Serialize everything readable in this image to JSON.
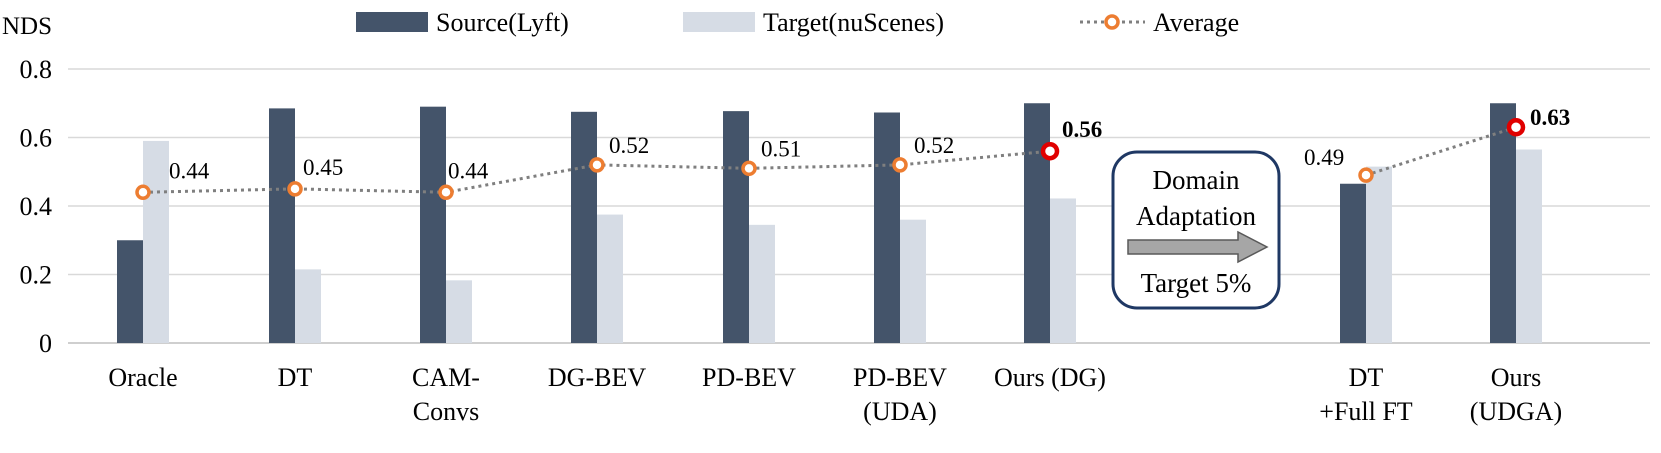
{
  "chart_data": {
    "type": "bar",
    "ylabel": "NDS",
    "ylim": [
      0,
      0.8
    ],
    "yticks": [
      "0",
      "0.2",
      "0.4",
      "0.6",
      "0.8"
    ],
    "grid": true,
    "legend_position": "top",
    "categories": [
      {
        "line1": "Oracle",
        "line2": ""
      },
      {
        "line1": "DT",
        "line2": ""
      },
      {
        "line1": "CAM-",
        "line2": "Convs"
      },
      {
        "line1": "DG-BEV",
        "line2": ""
      },
      {
        "line1": "PD-BEV",
        "line2": ""
      },
      {
        "line1": "PD-BEV",
        "line2": "(UDA)"
      },
      {
        "line1": "Ours (DG)",
        "line2": ""
      },
      {
        "line1": "DT",
        "line2": "+Full FT"
      },
      {
        "line1": "Ours",
        "line2": "(UDGA)"
      }
    ],
    "series": [
      {
        "name": "Source(Lyft)",
        "color": "#44546a",
        "values": [
          0.3,
          0.685,
          0.69,
          0.675,
          0.677,
          0.673,
          0.7,
          0.465,
          0.7
        ]
      },
      {
        "name": "Target(nuScenes)",
        "color": "#d6dce5",
        "values": [
          0.59,
          0.215,
          0.183,
          0.375,
          0.345,
          0.36,
          0.422,
          0.515,
          0.565
        ]
      }
    ],
    "average": {
      "name": "Average",
      "line_color": "#7f7f7f",
      "marker_color": "#ed7d31",
      "highlight_color": "#e00000",
      "values": [
        0.44,
        0.45,
        0.44,
        0.52,
        0.51,
        0.52,
        0.56,
        0.49,
        0.63
      ],
      "labels": [
        "0.44",
        "0.45",
        "0.44",
        "0.52",
        "0.51",
        "0.52",
        "0.56",
        "0.49",
        "0.63"
      ],
      "highlighted": [
        false,
        false,
        false,
        false,
        false,
        false,
        true,
        false,
        true
      ]
    },
    "annotation": {
      "line1": "Domain",
      "line2": "Adaptation",
      "line3": "Target 5%"
    }
  }
}
